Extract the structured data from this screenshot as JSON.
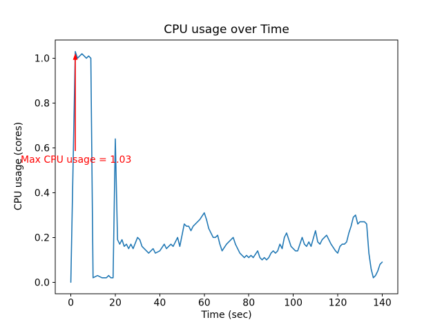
{
  "chart_data": {
    "type": "line",
    "title": "CPU usage over Time",
    "xlabel": "Time (sec)",
    "ylabel": "CPU usage (cores)",
    "grid": false,
    "legend": false,
    "xlim": [
      -7,
      147
    ],
    "ylim": [
      -0.0515,
      1.0815
    ],
    "x_ticks": [
      0,
      20,
      40,
      60,
      80,
      100,
      120,
      140
    ],
    "x_tick_labels": [
      "0",
      "20",
      "40",
      "60",
      "80",
      "100",
      "120",
      "140"
    ],
    "y_ticks": [
      0.0,
      0.2,
      0.4,
      0.6,
      0.8,
      1.0
    ],
    "y_tick_labels": [
      "0.0",
      "0.2",
      "0.4",
      "0.6",
      "0.8",
      "1.0"
    ],
    "line_color": "#1f77b4",
    "axis_color": "#000000",
    "series": [
      {
        "name": "CPU usage",
        "x": [
          0,
          2,
          3,
          4,
          5,
          6,
          7,
          8,
          9,
          10,
          12,
          14,
          16,
          17,
          18,
          19,
          20,
          21,
          22,
          23,
          24,
          25,
          26,
          27,
          28,
          30,
          31,
          32,
          34,
          35,
          36,
          37,
          38,
          40,
          42,
          43,
          44,
          45,
          46,
          48,
          49,
          51,
          52,
          53,
          54,
          55,
          56,
          58,
          60,
          61,
          62,
          63,
          64,
          65,
          66,
          67,
          68,
          70,
          72,
          73,
          74,
          76,
          78,
          79,
          80,
          81,
          82,
          84,
          85,
          86,
          87,
          88,
          89,
          90,
          91,
          92,
          93,
          94,
          95,
          96,
          97,
          98,
          99,
          100,
          101,
          102,
          104,
          105,
          106,
          107,
          108,
          110,
          111,
          112,
          113,
          114,
          115,
          116,
          117,
          119,
          120,
          121,
          122,
          123,
          124,
          125,
          126,
          127,
          128,
          129,
          130,
          131,
          132,
          133,
          134,
          135,
          136,
          137,
          138,
          139,
          140
        ],
        "y": [
          0.0,
          1.03,
          1.0,
          1.01,
          1.02,
          1.01,
          1.0,
          1.01,
          1.0,
          0.02,
          0.03,
          0.02,
          0.02,
          0.03,
          0.02,
          0.02,
          0.64,
          0.19,
          0.17,
          0.19,
          0.16,
          0.17,
          0.15,
          0.17,
          0.15,
          0.2,
          0.19,
          0.16,
          0.14,
          0.13,
          0.14,
          0.15,
          0.13,
          0.14,
          0.17,
          0.15,
          0.16,
          0.17,
          0.16,
          0.2,
          0.16,
          0.26,
          0.25,
          0.25,
          0.23,
          0.25,
          0.26,
          0.28,
          0.31,
          0.28,
          0.24,
          0.22,
          0.2,
          0.2,
          0.21,
          0.17,
          0.14,
          0.17,
          0.19,
          0.2,
          0.17,
          0.13,
          0.11,
          0.12,
          0.11,
          0.12,
          0.11,
          0.14,
          0.11,
          0.1,
          0.11,
          0.1,
          0.11,
          0.13,
          0.14,
          0.13,
          0.14,
          0.17,
          0.15,
          0.2,
          0.22,
          0.19,
          0.16,
          0.15,
          0.14,
          0.14,
          0.2,
          0.17,
          0.16,
          0.18,
          0.16,
          0.23,
          0.18,
          0.17,
          0.19,
          0.2,
          0.21,
          0.19,
          0.17,
          0.14,
          0.13,
          0.16,
          0.17,
          0.17,
          0.18,
          0.22,
          0.25,
          0.29,
          0.3,
          0.26,
          0.27,
          0.27,
          0.27,
          0.26,
          0.13,
          0.06,
          0.02,
          0.03,
          0.05,
          0.08,
          0.09
        ]
      }
    ],
    "annotation": {
      "text": "Max CPU usage = 1.03",
      "color": "#ff0000",
      "max_value": 1.03,
      "arrow_x": 2,
      "arrow_tip_y": 1.03
    }
  }
}
